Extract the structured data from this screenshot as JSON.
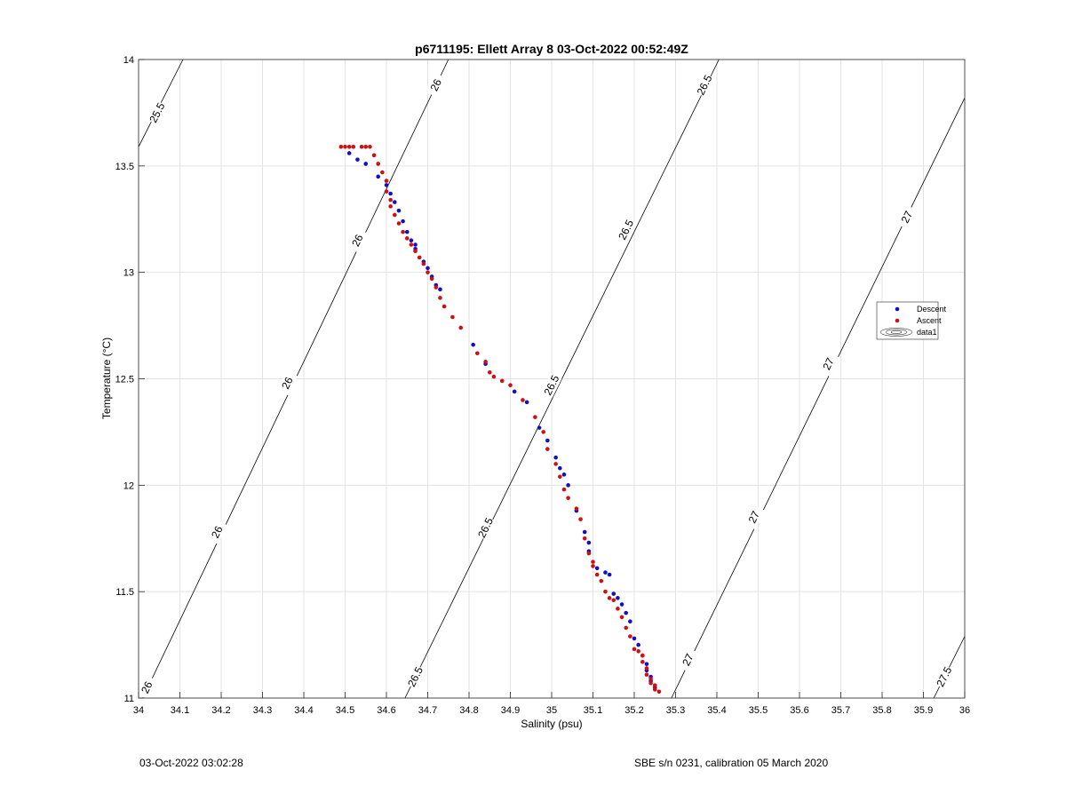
{
  "footer": {
    "timestamp": "03-Oct-2022 03:02:28",
    "sensor_info": "SBE s/n 0231, calibration 05 March 2020"
  },
  "colors": {
    "descent": "#1010c8",
    "ascent": "#d01010",
    "grid": "#e3e3e3",
    "contour": "#000000"
  },
  "chart_data": {
    "type": "scatter",
    "title": "p6711195: Ellett Array 8 03-Oct-2022 00:52:49Z",
    "xlabel": "Salinity (psu)",
    "ylabel": "Temperature (°C)",
    "xlim": [
      34,
      36
    ],
    "ylim": [
      11,
      14
    ],
    "grid": true,
    "xticks": [
      "34",
      "34.1",
      "34.2",
      "34.3",
      "34.4",
      "34.5",
      "34.6",
      "34.7",
      "34.8",
      "34.9",
      "35",
      "35.1",
      "35.2",
      "35.3",
      "35.4",
      "35.5",
      "35.6",
      "35.7",
      "35.8",
      "35.9",
      "36"
    ],
    "yticks": [
      "11",
      "11.5",
      "12",
      "12.5",
      "13",
      "13.5",
      "14"
    ],
    "legend": {
      "placement": "right",
      "entries": [
        "Descent",
        "Ascent",
        "data1"
      ]
    },
    "series": [
      {
        "name": "Descent",
        "marker": "dot",
        "x": [
          34.51,
          34.53,
          34.55,
          34.58,
          34.6,
          34.61,
          34.62,
          34.63,
          34.64,
          34.65,
          34.66,
          34.67,
          34.67,
          34.69,
          34.7,
          34.71,
          34.72,
          34.73,
          34.81,
          34.84,
          34.91,
          34.94,
          34.97,
          34.99,
          35.01,
          35.02,
          35.03,
          35.04,
          35.06,
          35.08,
          35.09,
          35.09,
          35.11,
          35.13,
          35.14,
          35.15,
          35.16,
          35.17,
          35.18,
          35.19,
          35.2,
          35.21,
          35.22,
          35.23,
          35.23,
          35.24,
          35.24,
          35.25
        ],
        "y": [
          13.56,
          13.53,
          13.51,
          13.45,
          13.41,
          13.37,
          13.33,
          13.29,
          13.24,
          13.19,
          13.15,
          13.13,
          13.11,
          13.05,
          13.02,
          12.98,
          12.94,
          12.92,
          12.66,
          12.57,
          12.44,
          12.39,
          12.27,
          12.21,
          12.13,
          12.08,
          12.05,
          12.0,
          11.88,
          11.78,
          11.73,
          11.69,
          11.61,
          11.59,
          11.58,
          11.49,
          11.47,
          11.44,
          11.4,
          11.36,
          11.28,
          11.25,
          11.2,
          11.16,
          11.13,
          11.1,
          11.08,
          11.05
        ]
      },
      {
        "name": "Ascent",
        "marker": "dot",
        "x": [
          34.49,
          34.5,
          34.51,
          34.52,
          34.54,
          34.55,
          34.56,
          34.57,
          34.58,
          34.59,
          34.6,
          34.6,
          34.61,
          34.61,
          34.62,
          34.63,
          34.64,
          34.65,
          34.66,
          34.67,
          34.68,
          34.69,
          34.7,
          34.71,
          34.72,
          34.73,
          34.74,
          34.76,
          34.78,
          34.82,
          34.84,
          34.85,
          34.86,
          34.88,
          34.9,
          34.93,
          34.96,
          34.98,
          34.99,
          35.01,
          35.02,
          35.03,
          35.04,
          35.06,
          35.07,
          35.08,
          35.09,
          35.1,
          35.1,
          35.11,
          35.12,
          35.13,
          35.14,
          35.15,
          35.16,
          35.17,
          35.18,
          35.19,
          35.2,
          35.21,
          35.22,
          35.22,
          35.23,
          35.23,
          35.24,
          35.24,
          35.25,
          35.25,
          35.26
        ],
        "y": [
          13.59,
          13.59,
          13.59,
          13.59,
          13.59,
          13.59,
          13.59,
          13.55,
          13.51,
          13.47,
          13.43,
          13.38,
          13.34,
          13.31,
          13.27,
          13.23,
          13.19,
          13.16,
          13.13,
          13.1,
          13.07,
          13.04,
          13.0,
          12.97,
          12.93,
          12.88,
          12.84,
          12.79,
          12.74,
          12.62,
          12.58,
          12.53,
          12.51,
          12.49,
          12.47,
          12.4,
          12.32,
          12.25,
          12.17,
          12.1,
          12.04,
          11.98,
          11.94,
          11.89,
          11.84,
          11.75,
          11.68,
          11.64,
          11.62,
          11.58,
          11.55,
          11.5,
          11.47,
          11.46,
          11.42,
          11.38,
          11.33,
          11.29,
          11.23,
          11.22,
          11.2,
          11.17,
          11.14,
          11.11,
          11.09,
          11.07,
          11.06,
          11.04,
          11.03
        ]
      }
    ],
    "isopycnals": [
      {
        "level": "25.5",
        "x": [
          34,
          34.1075
        ],
        "y": [
          13.59,
          14
        ],
        "labels": [
          {
            "x": 34.045,
            "y": 13.75
          }
        ]
      },
      {
        "level": "26",
        "x": [
          34.01,
          34.75
        ],
        "y": [
          11,
          14
        ],
        "labels": [
          {
            "x": 34.02,
            "y": 11.05
          },
          {
            "x": 34.19,
            "y": 11.78
          },
          {
            "x": 34.36,
            "y": 12.48
          },
          {
            "x": 34.53,
            "y": 13.15
          },
          {
            "x": 34.72,
            "y": 13.88
          }
        ]
      },
      {
        "level": "26.5",
        "x": [
          34.645,
          35.405
        ],
        "y": [
          11,
          14
        ],
        "labels": [
          {
            "x": 34.67,
            "y": 11.1
          },
          {
            "x": 34.84,
            "y": 11.8
          },
          {
            "x": 35.0,
            "y": 12.47
          },
          {
            "x": 35.18,
            "y": 13.2
          },
          {
            "x": 35.37,
            "y": 13.88
          }
        ]
      },
      {
        "level": "27",
        "x": [
          35.29,
          36
        ],
        "y": [
          11,
          13.82
        ],
        "labels": [
          {
            "x": 35.33,
            "y": 11.18
          },
          {
            "x": 35.49,
            "y": 11.85
          },
          {
            "x": 35.67,
            "y": 12.57
          },
          {
            "x": 35.86,
            "y": 13.26
          }
        ]
      },
      {
        "level": "27.5",
        "x": [
          35.925,
          36
        ],
        "y": [
          11,
          11.29
        ],
        "labels": [
          {
            "x": 35.95,
            "y": 11.1
          }
        ]
      }
    ]
  }
}
